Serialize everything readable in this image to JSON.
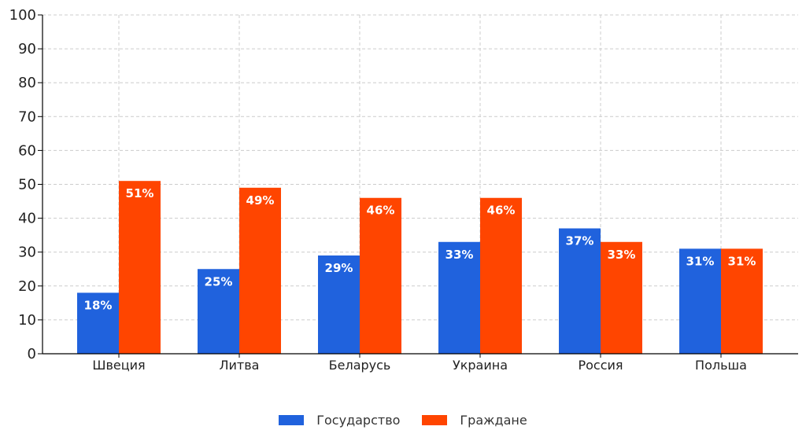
{
  "chart_data": {
    "type": "bar",
    "categories": [
      "Швеция",
      "Литва",
      "Беларусь",
      "Украина",
      "Россия",
      "Польша"
    ],
    "series": [
      {
        "name": "Государство",
        "color": "#2062DD",
        "values": [
          18,
          25,
          29,
          33,
          37,
          31
        ],
        "labels": [
          "18%",
          "25%",
          "29%",
          "33%",
          "37%",
          "31%"
        ]
      },
      {
        "name": "Граждане",
        "color": "#FF4500",
        "values": [
          51,
          49,
          46,
          46,
          33,
          31
        ],
        "labels": [
          "51%",
          "49%",
          "46%",
          "46%",
          "33%",
          "31%"
        ]
      }
    ],
    "ylim": [
      0,
      100
    ],
    "yticks": [
      "0",
      "10",
      "20",
      "30",
      "40",
      "50",
      "60",
      "70",
      "80",
      "90",
      "100"
    ],
    "grid": true,
    "legend_position": "bottom-center"
  }
}
